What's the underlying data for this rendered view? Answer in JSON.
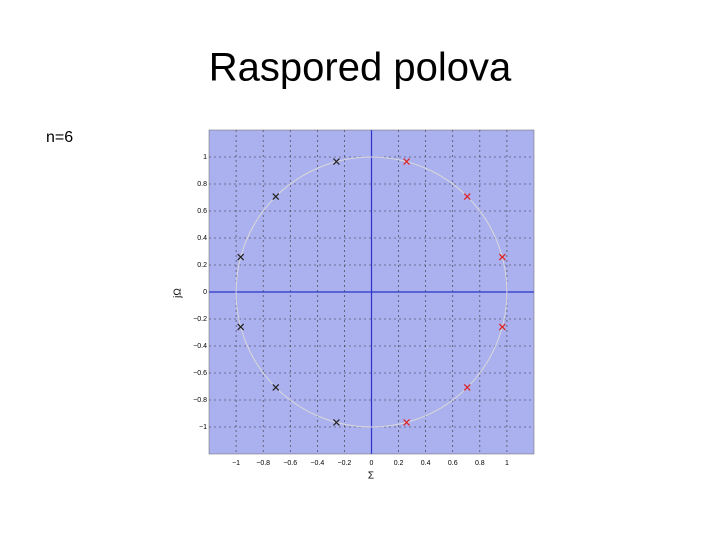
{
  "slide": {
    "title": "Raspored polova",
    "note": "n=6"
  },
  "chart_data": {
    "type": "scatter",
    "xlabel": "Σ",
    "ylabel": "jΩ",
    "xlim": [
      -1.2,
      1.2
    ],
    "ylim": [
      -1.2,
      1.2
    ],
    "xticks": [
      {
        "value": -1,
        "label": "−1"
      },
      {
        "value": -0.8,
        "label": "−0.8"
      },
      {
        "value": -0.6,
        "label": "−0.6"
      },
      {
        "value": -0.4,
        "label": "−0.4"
      },
      {
        "value": -0.2,
        "label": "−0.2"
      },
      0,
      0.2,
      0.4,
      0.6,
      0.8,
      1
    ],
    "yticks": [
      {
        "value": -1,
        "label": "−1"
      },
      {
        "value": -0.8,
        "label": "−0.8"
      },
      {
        "value": -0.6,
        "label": "−0.6"
      },
      {
        "value": -0.4,
        "label": "−0.4"
      },
      {
        "value": -0.2,
        "label": "−0.2"
      },
      0,
      0.2,
      0.4,
      0.6,
      0.8,
      1
    ],
    "grid": true,
    "background": "#abb0ef",
    "series": [
      {
        "color": "#222222",
        "x": [
          -0.259,
          -0.707,
          -0.966,
          -0.966,
          -0.707,
          -0.259
        ],
        "values": [
          0.966,
          0.707,
          0.259,
          -0.259,
          -0.707,
          -0.966
        ]
      },
      {
        "color": "#e02020",
        "x": [
          0.259,
          0.707,
          0.966,
          0.966,
          0.707,
          0.259
        ],
        "values": [
          0.966,
          0.707,
          0.259,
          -0.259,
          -0.707,
          -0.966
        ]
      }
    ]
  }
}
